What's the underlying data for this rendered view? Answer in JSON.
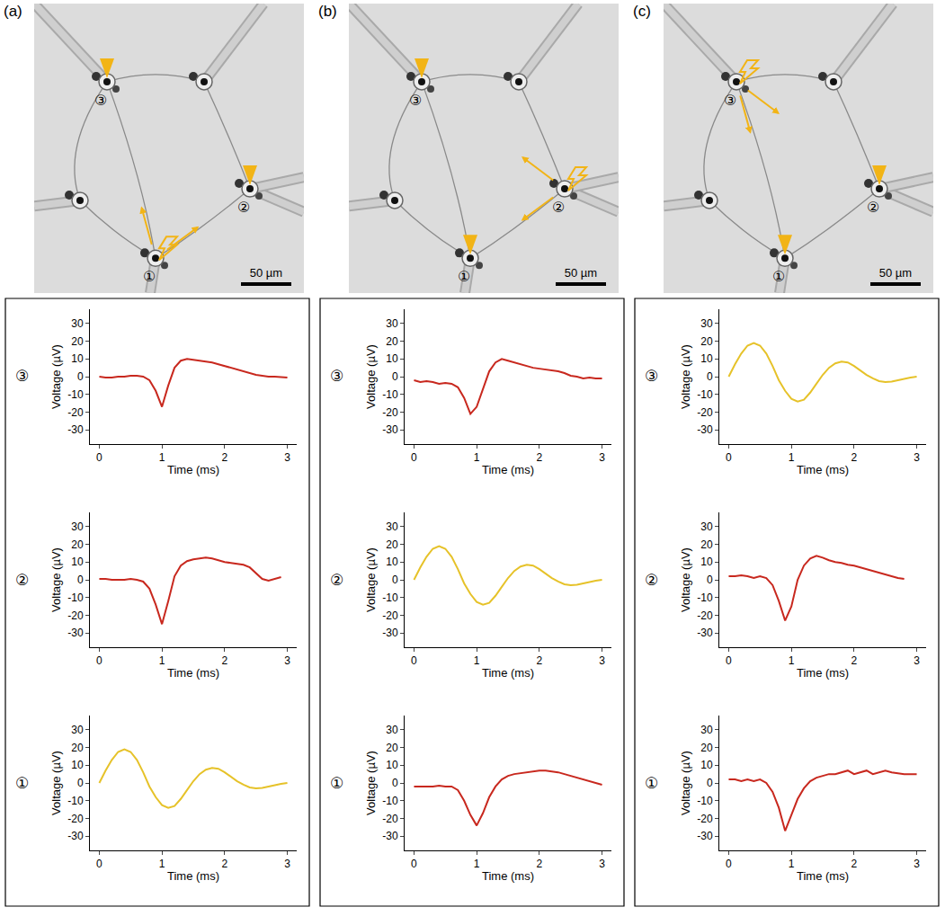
{
  "figure": {
    "panels": [
      {
        "label": "(a)",
        "scale_bar": "50 µm",
        "stimulated": "①",
        "recorded": [
          "②",
          "③"
        ]
      },
      {
        "label": "(b)",
        "scale_bar": "50 µm",
        "stimulated": "②",
        "recorded": [
          "①",
          "③"
        ]
      },
      {
        "label": "(c)",
        "scale_bar": "50 µm",
        "stimulated": "③",
        "recorded": [
          "①",
          "②"
        ]
      }
    ]
  },
  "chart_data": [
    {
      "type": "line",
      "panel": "(a)",
      "row": "③",
      "x_label": "Time (ms)",
      "y_label": "Voltage (µV)",
      "x": [
        0,
        0.1,
        0.2,
        0.3,
        0.4,
        0.5,
        0.6,
        0.7,
        0.8,
        0.9,
        1,
        1.1,
        1.2,
        1.3,
        1.4,
        1.5,
        1.6,
        1.7,
        1.8,
        1.9,
        2,
        2.1,
        2.2,
        2.3,
        2.4,
        2.5,
        2.6,
        2.7,
        2.8,
        2.9,
        3
      ],
      "values": [
        0,
        -0.5,
        -0.5,
        0,
        0,
        0.5,
        0.5,
        0,
        -2,
        -8,
        -17,
        -5,
        5,
        9,
        10,
        9.5,
        9,
        8.5,
        8,
        7,
        6,
        5,
        4,
        3,
        2,
        1,
        0.5,
        0,
        0,
        -0.3,
        -0.5
      ],
      "color": "#c8281e",
      "xlim": [
        -0.15,
        3.15
      ],
      "xticks": [
        0,
        1,
        2,
        3
      ],
      "ylim": [
        -38,
        38
      ],
      "yticks": [
        -30,
        -20,
        -10,
        0,
        10,
        20,
        30
      ]
    },
    {
      "type": "line",
      "panel": "(a)",
      "row": "②",
      "x_label": "Time (ms)",
      "y_label": "Voltage (µV)",
      "x": [
        0,
        0.1,
        0.2,
        0.3,
        0.4,
        0.5,
        0.6,
        0.7,
        0.8,
        0.9,
        1,
        1.1,
        1.2,
        1.3,
        1.4,
        1.5,
        1.6,
        1.7,
        1.8,
        1.9,
        2,
        2.1,
        2.2,
        2.3,
        2.4,
        2.5,
        2.6,
        2.7,
        2.8,
        2.9,
        3
      ],
      "values": [
        0.5,
        0.5,
        0,
        0,
        0,
        0.5,
        0,
        -1,
        -5,
        -14,
        -25,
        -12,
        2,
        8,
        10.5,
        11.5,
        12,
        12.5,
        12,
        11,
        10,
        9.5,
        9,
        8.5,
        7,
        4,
        0.5,
        -0.5,
        0.5,
        1.5,
        null
      ],
      "color": "#c8281e",
      "xlim": [
        -0.15,
        3.15
      ],
      "xticks": [
        0,
        1,
        2,
        3
      ],
      "ylim": [
        -38,
        38
      ],
      "yticks": [
        -30,
        -20,
        -10,
        0,
        10,
        20,
        30
      ]
    },
    {
      "type": "line",
      "panel": "(a)",
      "row": "①",
      "x_label": "Time (ms)",
      "y_label": "Voltage (µV)",
      "x": [
        0,
        0.1,
        0.2,
        0.3,
        0.4,
        0.5,
        0.6,
        0.7,
        0.8,
        0.9,
        1,
        1.1,
        1.2,
        1.3,
        1.4,
        1.5,
        1.6,
        1.7,
        1.8,
        1.9,
        2,
        2.1,
        2.2,
        2.3,
        2.4,
        2.5,
        2.6,
        2.7,
        2.8,
        2.9,
        3
      ],
      "values": [
        0,
        7,
        13,
        17.5,
        19,
        17.5,
        13,
        6,
        -2,
        -8,
        -12.5,
        -14,
        -13,
        -9,
        -4,
        1,
        5,
        7.5,
        8.5,
        8,
        6,
        3.5,
        1,
        -1,
        -2.5,
        -3,
        -2.8,
        -2,
        -1.2,
        -0.5,
        0
      ],
      "color": "#e6c229",
      "xlim": [
        -0.15,
        3.15
      ],
      "xticks": [
        0,
        1,
        2,
        3
      ],
      "ylim": [
        -38,
        38
      ],
      "yticks": [
        -30,
        -20,
        -10,
        0,
        10,
        20,
        30
      ]
    },
    {
      "type": "line",
      "panel": "(b)",
      "row": "③",
      "x_label": "Time (ms)",
      "y_label": "Voltage (µV)",
      "x": [
        0,
        0.1,
        0.2,
        0.3,
        0.4,
        0.5,
        0.6,
        0.7,
        0.8,
        0.9,
        1,
        1.1,
        1.2,
        1.3,
        1.4,
        1.5,
        1.6,
        1.7,
        1.8,
        1.9,
        2,
        2.1,
        2.2,
        2.3,
        2.4,
        2.5,
        2.6,
        2.7,
        2.8,
        2.9,
        3
      ],
      "values": [
        -2,
        -3,
        -2.5,
        -3,
        -4,
        -3.5,
        -4,
        -6,
        -12,
        -21,
        -17,
        -7,
        3,
        8,
        10,
        9,
        8,
        7,
        6,
        5,
        4.5,
        4,
        3.5,
        3,
        2,
        0.5,
        0,
        -1,
        -0.5,
        -1,
        -1
      ],
      "color": "#c8281e",
      "xlim": [
        -0.15,
        3.15
      ],
      "xticks": [
        0,
        1,
        2,
        3
      ],
      "ylim": [
        -38,
        38
      ],
      "yticks": [
        -30,
        -20,
        -10,
        0,
        10,
        20,
        30
      ]
    },
    {
      "type": "line",
      "panel": "(b)",
      "row": "②",
      "x_label": "Time (ms)",
      "y_label": "Voltage (µV)",
      "x": [
        0,
        0.1,
        0.2,
        0.3,
        0.4,
        0.5,
        0.6,
        0.7,
        0.8,
        0.9,
        1,
        1.1,
        1.2,
        1.3,
        1.4,
        1.5,
        1.6,
        1.7,
        1.8,
        1.9,
        2,
        2.1,
        2.2,
        2.3,
        2.4,
        2.5,
        2.6,
        2.7,
        2.8,
        2.9,
        3
      ],
      "values": [
        0,
        7,
        13,
        17.5,
        19,
        17.5,
        13,
        6,
        -2,
        -8,
        -12.5,
        -14,
        -13,
        -9,
        -4,
        1,
        5,
        7.5,
        8.5,
        8,
        6,
        3.5,
        1,
        -1,
        -2.5,
        -3,
        -2.8,
        -2,
        -1.2,
        -0.5,
        0
      ],
      "color": "#e6c229",
      "xlim": [
        -0.15,
        3.15
      ],
      "xticks": [
        0,
        1,
        2,
        3
      ],
      "ylim": [
        -38,
        38
      ],
      "yticks": [
        -30,
        -20,
        -10,
        0,
        10,
        20,
        30
      ]
    },
    {
      "type": "line",
      "panel": "(b)",
      "row": "①",
      "x_label": "Time (ms)",
      "y_label": "Voltage (µV)",
      "x": [
        0,
        0.1,
        0.2,
        0.3,
        0.4,
        0.5,
        0.6,
        0.7,
        0.8,
        0.9,
        1,
        1.1,
        1.2,
        1.3,
        1.4,
        1.5,
        1.6,
        1.7,
        1.8,
        1.9,
        2,
        2.1,
        2.2,
        2.3,
        2.4,
        2.5,
        2.6,
        2.7,
        2.8,
        2.9,
        3
      ],
      "values": [
        -2,
        -2,
        -2,
        -2,
        -1.5,
        -2,
        -2,
        -4,
        -10,
        -18,
        -24,
        -17,
        -8,
        -2,
        2,
        4,
        5,
        5.5,
        6,
        6.5,
        7,
        7,
        6.5,
        6,
        5,
        4,
        3,
        2,
        1,
        0,
        -1
      ],
      "color": "#c8281e",
      "xlim": [
        -0.15,
        3.15
      ],
      "xticks": [
        0,
        1,
        2,
        3
      ],
      "ylim": [
        -38,
        38
      ],
      "yticks": [
        -30,
        -20,
        -10,
        0,
        10,
        20,
        30
      ]
    },
    {
      "type": "line",
      "panel": "(c)",
      "row": "③",
      "x_label": "Time (ms)",
      "y_label": "Voltage (µV)",
      "x": [
        0,
        0.1,
        0.2,
        0.3,
        0.4,
        0.5,
        0.6,
        0.7,
        0.8,
        0.9,
        1,
        1.1,
        1.2,
        1.3,
        1.4,
        1.5,
        1.6,
        1.7,
        1.8,
        1.9,
        2,
        2.1,
        2.2,
        2.3,
        2.4,
        2.5,
        2.6,
        2.7,
        2.8,
        2.9,
        3
      ],
      "values": [
        0,
        7,
        13,
        17.5,
        19,
        17.5,
        13,
        6,
        -2,
        -8,
        -12.5,
        -14,
        -13,
        -9,
        -4,
        1,
        5,
        7.5,
        8.5,
        8,
        6,
        3.5,
        1,
        -1,
        -2.5,
        -3,
        -2.8,
        -2,
        -1.2,
        -0.5,
        0
      ],
      "color": "#e6c229",
      "xlim": [
        -0.15,
        3.15
      ],
      "xticks": [
        0,
        1,
        2,
        3
      ],
      "ylim": [
        -38,
        38
      ],
      "yticks": [
        -30,
        -20,
        -10,
        0,
        10,
        20,
        30
      ]
    },
    {
      "type": "line",
      "panel": "(c)",
      "row": "②",
      "x_label": "Time (ms)",
      "y_label": "Voltage (µV)",
      "x": [
        0,
        0.1,
        0.2,
        0.3,
        0.4,
        0.5,
        0.6,
        0.7,
        0.8,
        0.9,
        1,
        1.1,
        1.2,
        1.3,
        1.4,
        1.5,
        1.6,
        1.7,
        1.8,
        1.9,
        2,
        2.1,
        2.2,
        2.3,
        2.4,
        2.5,
        2.6,
        2.7,
        2.8,
        2.9,
        3
      ],
      "values": [
        2,
        2,
        2.5,
        2,
        1,
        2,
        1,
        -3,
        -12,
        -23,
        -15,
        0,
        8,
        12,
        13.5,
        12.5,
        11,
        10,
        9.5,
        8.5,
        8,
        7,
        6,
        5,
        4,
        3,
        2,
        1,
        0.5,
        null,
        null
      ],
      "color": "#c8281e",
      "xlim": [
        -0.15,
        3.15
      ],
      "xticks": [
        0,
        1,
        2,
        3
      ],
      "ylim": [
        -38,
        38
      ],
      "yticks": [
        -30,
        -20,
        -10,
        0,
        10,
        20,
        30
      ]
    },
    {
      "type": "line",
      "panel": "(c)",
      "row": "①",
      "x_label": "Time (ms)",
      "y_label": "Voltage (µV)",
      "x": [
        0,
        0.1,
        0.2,
        0.3,
        0.4,
        0.5,
        0.6,
        0.7,
        0.8,
        0.9,
        1,
        1.1,
        1.2,
        1.3,
        1.4,
        1.5,
        1.6,
        1.7,
        1.8,
        1.9,
        2,
        2.1,
        2.2,
        2.3,
        2.4,
        2.5,
        2.6,
        2.7,
        2.8,
        2.9,
        3
      ],
      "values": [
        2,
        2,
        1,
        2,
        1,
        2,
        0,
        -5,
        -14,
        -27,
        -18,
        -9,
        -3,
        1,
        3,
        4,
        5,
        5,
        6,
        7,
        5,
        6,
        7,
        5,
        6,
        7,
        6,
        5.5,
        5,
        5,
        5
      ],
      "color": "#c8281e",
      "xlim": [
        -0.15,
        3.15
      ],
      "xticks": [
        0,
        1,
        2,
        3
      ],
      "ylim": [
        -38,
        38
      ],
      "yticks": [
        -30,
        -20,
        -10,
        0,
        10,
        20,
        30
      ]
    }
  ]
}
